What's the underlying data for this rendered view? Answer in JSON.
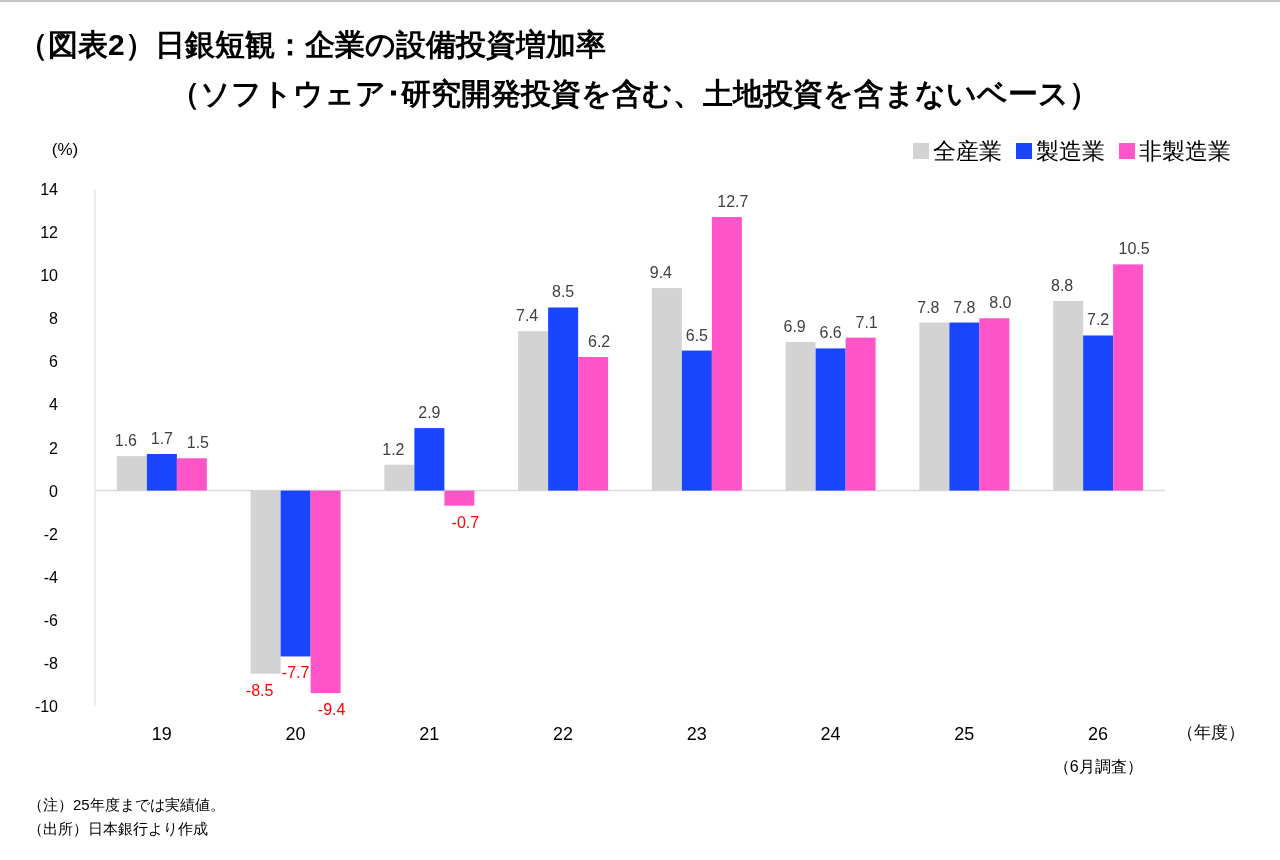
{
  "chart_data": {
    "type": "bar",
    "title": "（図表2）日銀短観：企業の設備投資増加率",
    "subtitle": "（ソフトウェア･研究開発投資を含む、土地投資を含まないベース）",
    "ylabel": "(%)",
    "xlabel": "（年度）",
    "categories": [
      "19",
      "20",
      "21",
      "22",
      "23",
      "24",
      "25",
      "26\n（6月調査）"
    ],
    "series": [
      {
        "name": "全産業",
        "color": "#d3d3d3",
        "values": [
          1.6,
          -8.5,
          1.2,
          7.4,
          9.4,
          6.9,
          7.8,
          8.8
        ],
        "value_labels": [
          "1.6",
          "-8.5",
          "1.2",
          "7.4",
          "9.4",
          "6.9",
          "7.8",
          "8.8"
        ]
      },
      {
        "name": "製造業",
        "color": "#1a45ff",
        "values": [
          1.7,
          -7.7,
          2.9,
          8.5,
          6.5,
          6.6,
          7.8,
          7.2
        ],
        "value_labels": [
          "1.7",
          "-7.7",
          "2.9",
          "8.5",
          "6.5",
          "6.6",
          "7.8",
          "7.2"
        ]
      },
      {
        "name": "非製造業",
        "color": "#ff55c8",
        "values": [
          1.5,
          -9.4,
          -0.7,
          6.2,
          12.7,
          7.1,
          8.0,
          10.5
        ],
        "value_labels": [
          "1.5",
          "-9.4",
          "-0.7",
          "6.2",
          "12.7",
          "7.1",
          "8.0",
          "10.5"
        ]
      }
    ],
    "ylim": [
      -10,
      14
    ],
    "yticks": [
      -10,
      -8,
      -6,
      -4,
      -2,
      0,
      2,
      4,
      6,
      8,
      10,
      12,
      14
    ],
    "legend": "top right",
    "annotations": [
      "（注）25年度までは実績値。",
      "（出所）日本銀行より作成"
    ]
  }
}
